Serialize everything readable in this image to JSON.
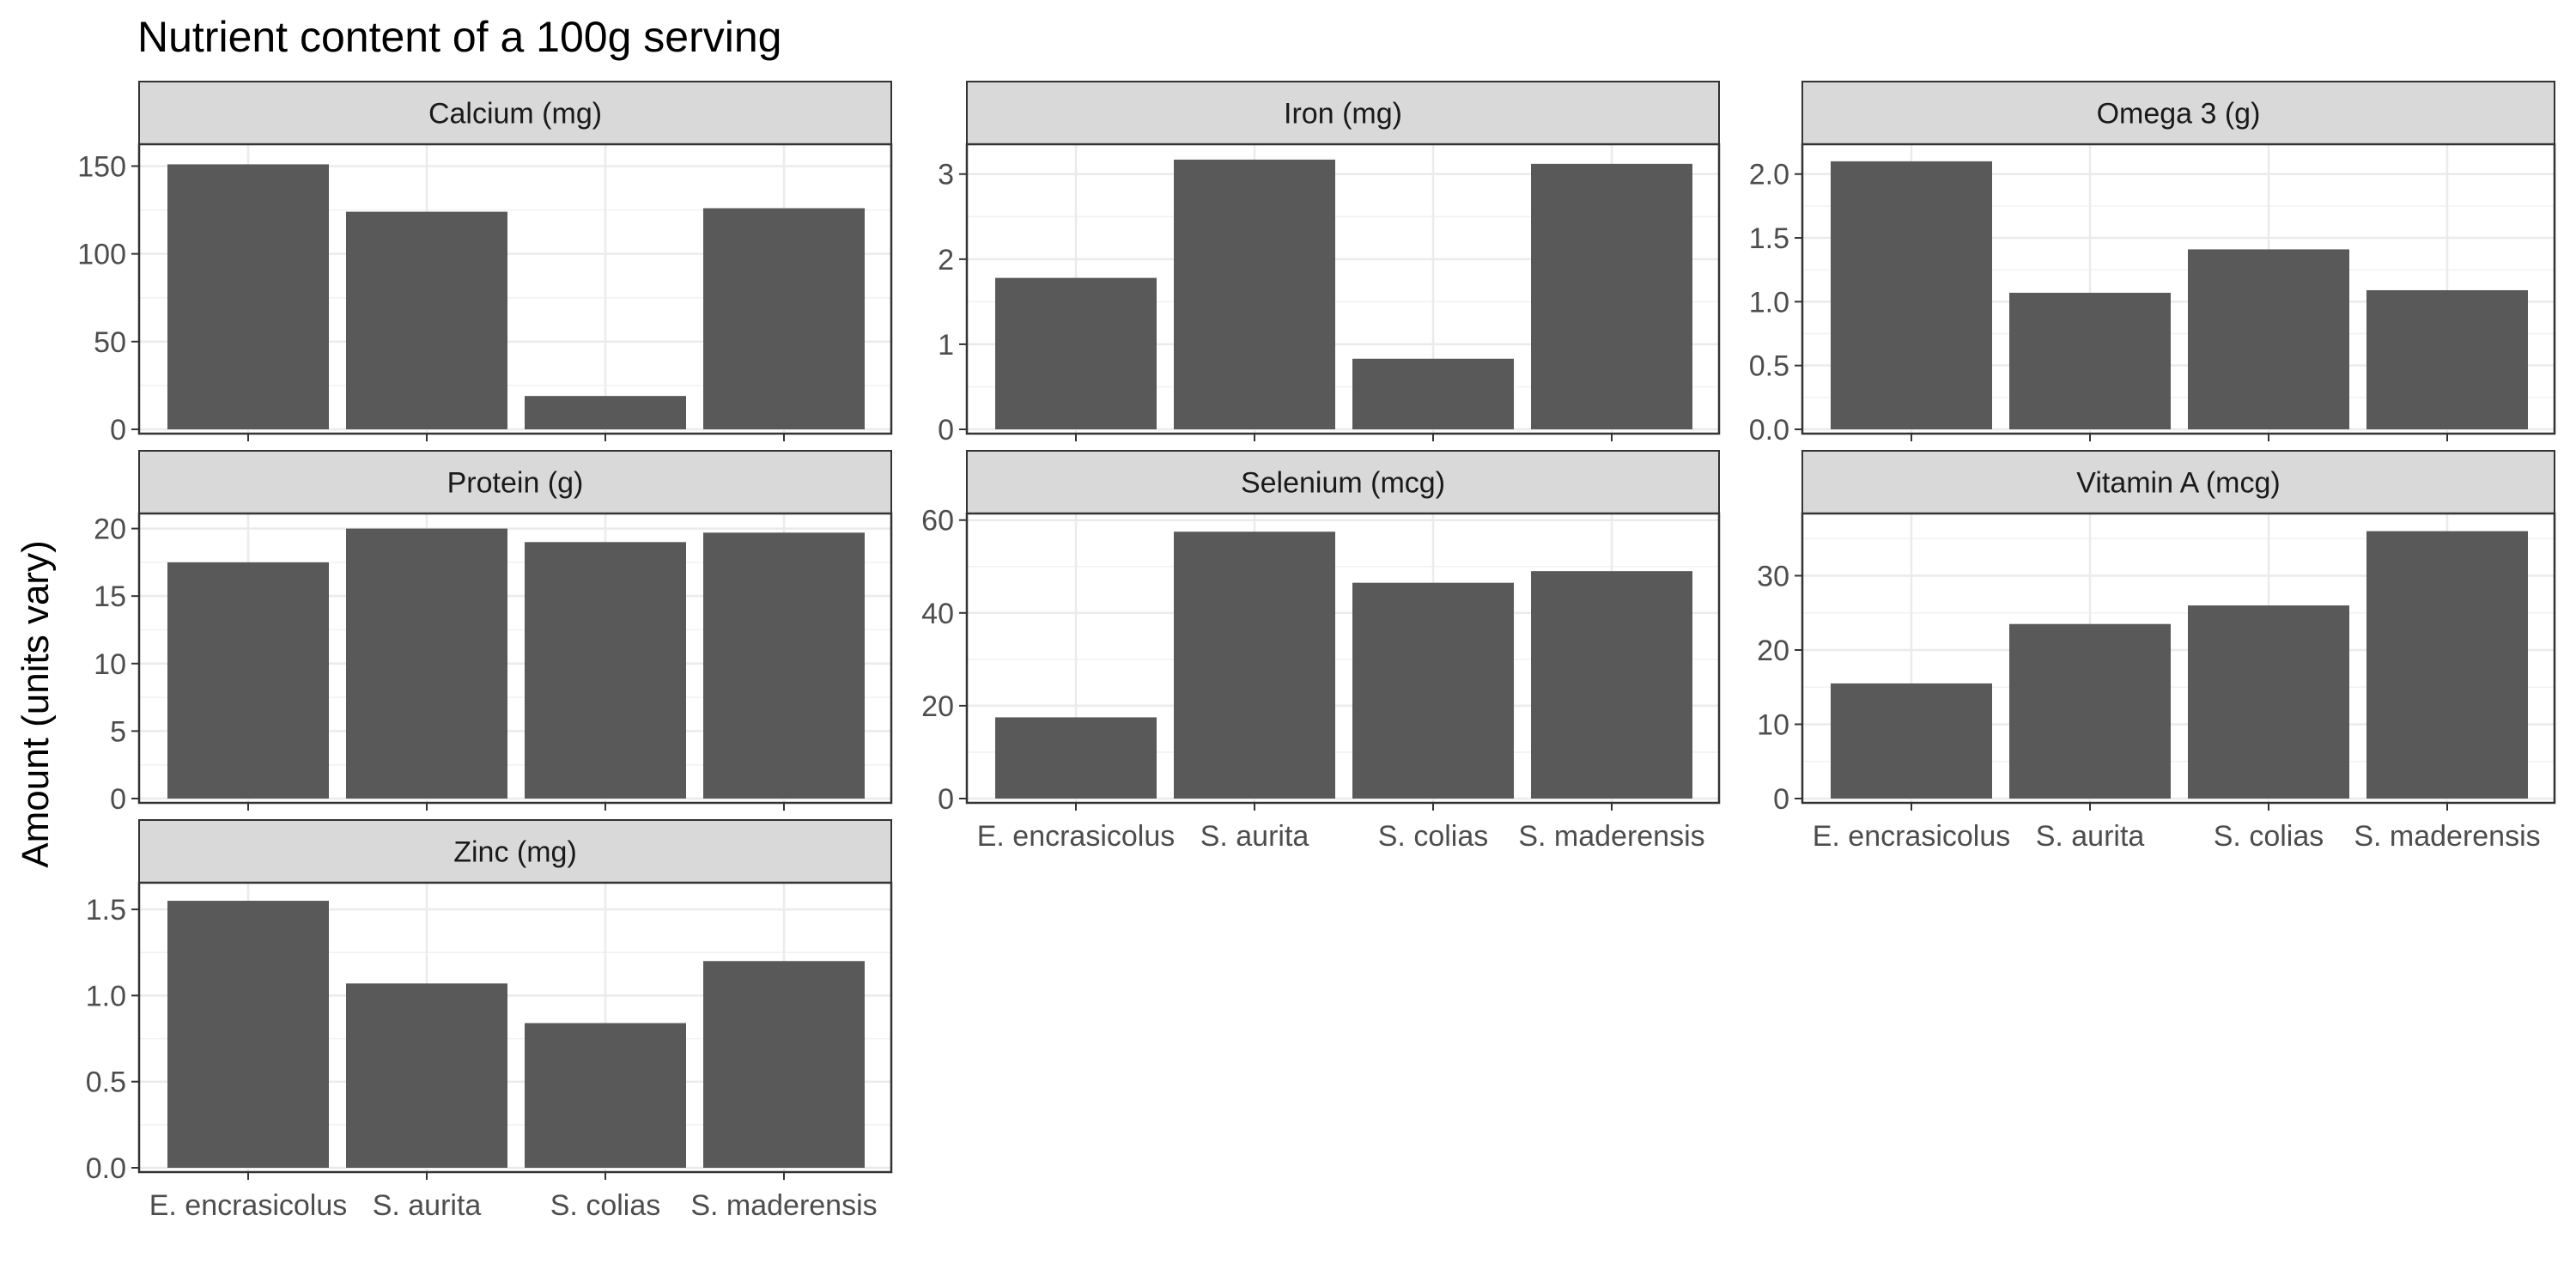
{
  "chart_data": {
    "type": "bar",
    "title": "Nutrient content of a 100g serving",
    "ylabel": "Amount (units vary)",
    "xlabel": "",
    "categories": [
      "E. encrasicolus",
      "S. aurita",
      "S. colias",
      "S. maderensis"
    ],
    "grid": true,
    "bar_color": "#595959",
    "panels": [
      {
        "name": "Calcium (mg)",
        "values": [
          151,
          124,
          19,
          126
        ],
        "ylim": [
          0,
          160
        ],
        "ticks": [
          "0",
          "50",
          "100",
          "150"
        ]
      },
      {
        "name": "Iron (mg)",
        "values": [
          1.78,
          3.17,
          0.83,
          3.12
        ],
        "ylim": [
          0,
          3.3
        ],
        "ticks": [
          "0",
          "1",
          "2",
          "3"
        ]
      },
      {
        "name": "Omega 3 (g)",
        "values": [
          2.1,
          1.07,
          1.41,
          1.09
        ],
        "ylim": [
          0,
          2.2
        ],
        "ticks": [
          "0.0",
          "0.5",
          "1.0",
          "1.5",
          "2.0"
        ]
      },
      {
        "name": "Protein (g)",
        "values": [
          17.5,
          20.0,
          19.0,
          19.7
        ],
        "ylim": [
          0,
          20.8
        ],
        "ticks": [
          "0",
          "5",
          "10",
          "15",
          "20"
        ]
      },
      {
        "name": "Selenium (mcg)",
        "values": [
          17.5,
          57.5,
          46.5,
          49.0
        ],
        "ylim": [
          0,
          60.5
        ],
        "ticks": [
          "0",
          "20",
          "40",
          "60"
        ]
      },
      {
        "name": "Vitamin A (mcg)",
        "values": [
          15.5,
          23.5,
          26.0,
          36.0
        ],
        "ylim": [
          0,
          37.8
        ],
        "ticks": [
          "0",
          "10",
          "20",
          "30"
        ]
      },
      {
        "name": "Zinc (mg)",
        "values": [
          1.55,
          1.07,
          0.84,
          1.2
        ],
        "ylim": [
          0,
          1.63
        ],
        "ticks": [
          "0.0",
          "0.5",
          "1.0",
          "1.5"
        ]
      }
    ]
  }
}
